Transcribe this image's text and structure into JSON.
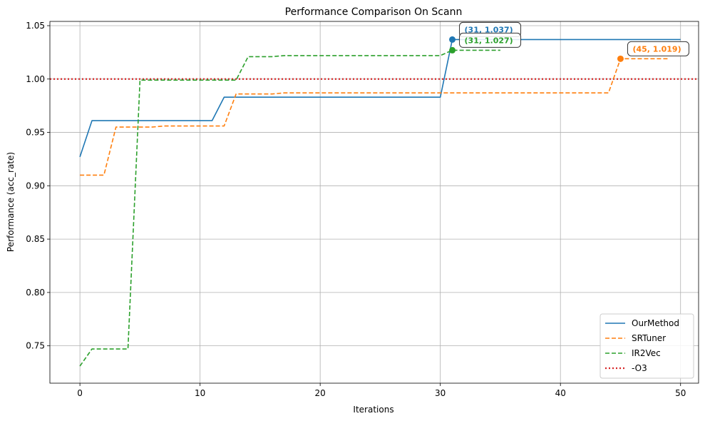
{
  "chart_data": {
    "type": "line",
    "title": "Performance Comparison On Scann",
    "xlabel": "Iterations",
    "ylabel": "Performance (acc_rate)",
    "xlim": [
      -2.5,
      51.5
    ],
    "ylim": [
      0.715,
      1.054
    ],
    "xticks": [
      0,
      10,
      20,
      30,
      40,
      50
    ],
    "yticks": [
      0.75,
      0.8,
      0.85,
      0.9,
      0.95,
      1.0,
      1.05
    ],
    "grid": true,
    "legend_position": "lower-right",
    "series": [
      {
        "name": "OurMethod",
        "color": "#1f77b4",
        "style": "solid",
        "points": [
          [
            0,
            0.927
          ],
          [
            1,
            0.961
          ],
          [
            11,
            0.961
          ],
          [
            12,
            0.983
          ],
          [
            30,
            0.983
          ],
          [
            31,
            1.037
          ],
          [
            50,
            1.037
          ]
        ]
      },
      {
        "name": "SRTuner",
        "color": "#ff7f0e",
        "style": "dashed",
        "points": [
          [
            0,
            0.91
          ],
          [
            2,
            0.91
          ],
          [
            3,
            0.955
          ],
          [
            6,
            0.955
          ],
          [
            7,
            0.956
          ],
          [
            12,
            0.956
          ],
          [
            13,
            0.986
          ],
          [
            16,
            0.986
          ],
          [
            17,
            0.987
          ],
          [
            44,
            0.987
          ],
          [
            45,
            1.019
          ],
          [
            49,
            1.019
          ]
        ]
      },
      {
        "name": "IR2Vec",
        "color": "#2ca02c",
        "style": "dashed",
        "points": [
          [
            0,
            0.731
          ],
          [
            1,
            0.747
          ],
          [
            4,
            0.747
          ],
          [
            5,
            0.999
          ],
          [
            13,
            0.999
          ],
          [
            14,
            1.021
          ],
          [
            16,
            1.021
          ],
          [
            17,
            1.022
          ],
          [
            30,
            1.022
          ],
          [
            31,
            1.027
          ],
          [
            35,
            1.027
          ]
        ]
      },
      {
        "name": "-O3",
        "color": "#d62728",
        "style": "dotted",
        "hline": 1.0
      }
    ],
    "annotations": [
      {
        "x": 31,
        "y": 1.037,
        "text": "(31, 1.037)",
        "color": "#1f77b4"
      },
      {
        "x": 31,
        "y": 1.027,
        "text": "(31, 1.027)",
        "color": "#2ca02c"
      },
      {
        "x": 45,
        "y": 1.019,
        "text": "(45, 1.019)",
        "color": "#ff7f0e"
      }
    ]
  }
}
